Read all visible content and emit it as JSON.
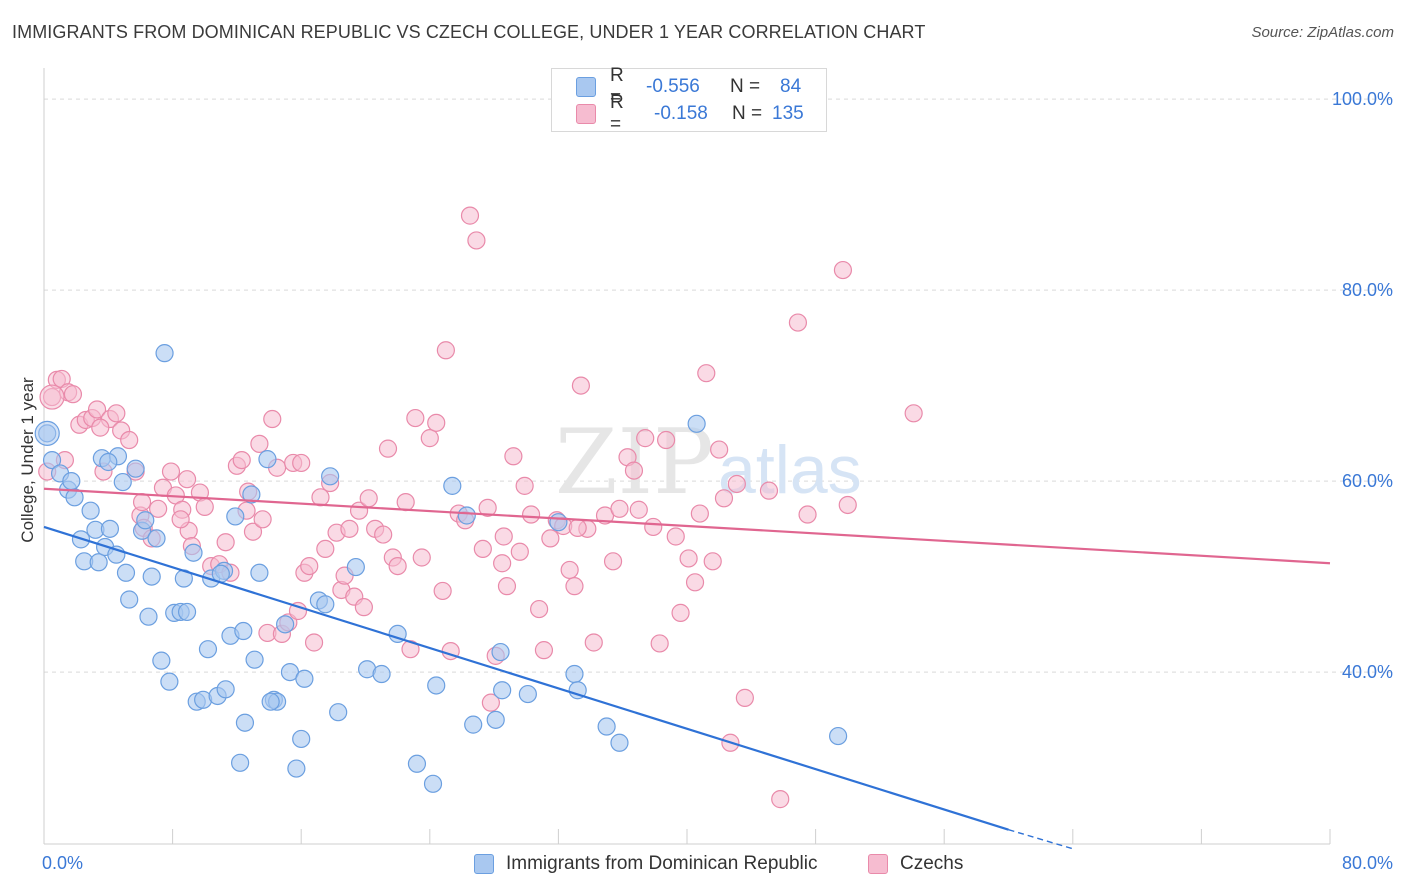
{
  "title": "IMMIGRANTS FROM DOMINICAN REPUBLIC VS CZECH COLLEGE, UNDER 1 YEAR CORRELATION CHART",
  "source": "Source: ZipAtlas.com",
  "watermark": {
    "zip": "ZIP",
    "atlas": "atlas"
  },
  "legend": {
    "series1": {
      "r_label": "R =",
      "r_value": "-0.556",
      "n_label": "N =",
      "n_value": "84"
    },
    "series2": {
      "r_label": "R =",
      "r_value": "-0.158",
      "n_label": "N =",
      "n_value": "135"
    }
  },
  "bottom_legend": {
    "series1": "Immigrants from Dominican Republic",
    "series2": "Czechs"
  },
  "colors": {
    "blue_fill": "#a9c8f0",
    "blue_stroke": "#6b9fe0",
    "blue_line": "#2f72d6",
    "pink_fill": "#f6bcd0",
    "pink_stroke": "#e98aaa",
    "pink_line": "#e06690",
    "axis_label": "#3a78d6",
    "grid": "#d9d9d9"
  },
  "chart_data": {
    "type": "scatter",
    "title": "IMMIGRANTS FROM DOMINICAN REPUBLIC VS CZECH COLLEGE, UNDER 1 YEAR CORRELATION CHART",
    "xlabel": "",
    "ylabel": "College, Under 1 year",
    "xlim": [
      0,
      80
    ],
    "ylim": [
      22,
      102
    ],
    "x_tick_labels": [
      "0.0%",
      "80.0%"
    ],
    "y_ticks": [
      40,
      60,
      80,
      100
    ],
    "y_tick_labels": [
      "40.0%",
      "60.0%",
      "80.0%",
      "100.0%"
    ],
    "series": [
      {
        "name": "Immigrants from Dominican Republic",
        "trend": {
          "x": [
            0,
            60
          ],
          "y": [
            55.2,
            23.5
          ],
          "dashed_to": [
            64,
            21.5
          ]
        },
        "points": [
          [
            0.2,
            65.0
          ],
          [
            0.5,
            62.2
          ],
          [
            1.0,
            60.8
          ],
          [
            1.5,
            59.1
          ],
          [
            1.9,
            58.3
          ],
          [
            2.3,
            53.9
          ],
          [
            2.5,
            51.6
          ],
          [
            2.9,
            56.9
          ],
          [
            3.2,
            54.9
          ],
          [
            3.4,
            51.5
          ],
          [
            3.6,
            62.4
          ],
          [
            3.8,
            53.1
          ],
          [
            4.1,
            55.0
          ],
          [
            4.5,
            52.3
          ],
          [
            4.6,
            62.6
          ],
          [
            4.9,
            59.9
          ],
          [
            5.1,
            50.4
          ],
          [
            5.3,
            47.6
          ],
          [
            5.7,
            61.3
          ],
          [
            6.1,
            54.8
          ],
          [
            6.3,
            55.9
          ],
          [
            6.5,
            45.8
          ],
          [
            6.7,
            50.0
          ],
          [
            7.0,
            54.0
          ],
          [
            7.3,
            41.2
          ],
          [
            7.5,
            73.4
          ],
          [
            7.8,
            39.0
          ],
          [
            8.1,
            46.2
          ],
          [
            8.5,
            46.3
          ],
          [
            8.7,
            49.8
          ],
          [
            8.9,
            46.3
          ],
          [
            9.3,
            52.5
          ],
          [
            9.5,
            36.9
          ],
          [
            9.9,
            37.1
          ],
          [
            10.2,
            42.4
          ],
          [
            10.4,
            49.8
          ],
          [
            10.8,
            37.5
          ],
          [
            11.2,
            50.6
          ],
          [
            11.3,
            38.2
          ],
          [
            11.6,
            43.8
          ],
          [
            11.9,
            56.3
          ],
          [
            12.2,
            30.5
          ],
          [
            12.4,
            44.3
          ],
          [
            12.5,
            34.7
          ],
          [
            12.9,
            58.6
          ],
          [
            13.1,
            41.3
          ],
          [
            13.4,
            50.4
          ],
          [
            13.9,
            62.3
          ],
          [
            14.3,
            37.1
          ],
          [
            14.5,
            36.9
          ],
          [
            15.0,
            45.0
          ],
          [
            15.3,
            40.0
          ],
          [
            15.7,
            29.9
          ],
          [
            16.0,
            33.0
          ],
          [
            16.2,
            39.3
          ],
          [
            17.1,
            47.5
          ],
          [
            17.5,
            47.1
          ],
          [
            17.8,
            60.5
          ],
          [
            18.3,
            35.8
          ],
          [
            19.4,
            51.0
          ],
          [
            20.1,
            40.3
          ],
          [
            21.0,
            39.8
          ],
          [
            22.0,
            44.0
          ],
          [
            23.2,
            30.4
          ],
          [
            24.2,
            28.3
          ],
          [
            24.4,
            38.6
          ],
          [
            25.4,
            59.5
          ],
          [
            26.3,
            56.4
          ],
          [
            26.7,
            34.5
          ],
          [
            28.1,
            35.0
          ],
          [
            28.4,
            42.1
          ],
          [
            28.5,
            38.1
          ],
          [
            30.1,
            37.7
          ],
          [
            32.0,
            55.7
          ],
          [
            33.0,
            39.8
          ],
          [
            33.2,
            38.1
          ],
          [
            35.0,
            34.3
          ],
          [
            35.8,
            32.6
          ],
          [
            40.6,
            66.0
          ],
          [
            49.4,
            33.3
          ],
          [
            14.1,
            36.9
          ],
          [
            11.0,
            50.3
          ],
          [
            4.0,
            62.0
          ],
          [
            1.7,
            60.0
          ]
        ]
      },
      {
        "name": "Czechs",
        "trend": {
          "x": [
            0,
            80
          ],
          "y": [
            59.2,
            51.4
          ]
        },
        "points": [
          [
            0.2,
            61.0
          ],
          [
            0.5,
            68.8
          ],
          [
            0.8,
            70.6
          ],
          [
            1.1,
            70.7
          ],
          [
            1.5,
            69.3
          ],
          [
            1.8,
            69.1
          ],
          [
            2.2,
            65.9
          ],
          [
            2.6,
            66.4
          ],
          [
            3.0,
            66.6
          ],
          [
            3.3,
            67.5
          ],
          [
            3.7,
            61.0
          ],
          [
            4.1,
            66.5
          ],
          [
            4.5,
            67.1
          ],
          [
            4.8,
            65.3
          ],
          [
            5.3,
            64.3
          ],
          [
            5.7,
            61.0
          ],
          [
            6.0,
            56.4
          ],
          [
            6.2,
            55.1
          ],
          [
            6.7,
            54.0
          ],
          [
            7.1,
            57.1
          ],
          [
            7.4,
            59.3
          ],
          [
            7.9,
            61.0
          ],
          [
            8.2,
            58.5
          ],
          [
            8.6,
            57.0
          ],
          [
            9.0,
            54.8
          ],
          [
            9.2,
            53.2
          ],
          [
            9.7,
            58.8
          ],
          [
            10.0,
            57.3
          ],
          [
            10.4,
            51.1
          ],
          [
            10.9,
            51.3
          ],
          [
            11.3,
            53.6
          ],
          [
            11.6,
            50.4
          ],
          [
            12.0,
            61.6
          ],
          [
            12.3,
            62.2
          ],
          [
            12.6,
            56.9
          ],
          [
            13.0,
            54.7
          ],
          [
            13.4,
            63.9
          ],
          [
            13.6,
            56.0
          ],
          [
            13.9,
            44.1
          ],
          [
            14.2,
            66.5
          ],
          [
            14.5,
            61.4
          ],
          [
            14.8,
            44.0
          ],
          [
            15.2,
            45.2
          ],
          [
            15.5,
            61.9
          ],
          [
            15.8,
            46.4
          ],
          [
            16.2,
            50.4
          ],
          [
            16.5,
            51.1
          ],
          [
            16.8,
            43.1
          ],
          [
            17.2,
            58.3
          ],
          [
            17.5,
            52.9
          ],
          [
            17.8,
            59.8
          ],
          [
            18.2,
            54.6
          ],
          [
            18.5,
            48.6
          ],
          [
            18.7,
            50.1
          ],
          [
            19.0,
            55.0
          ],
          [
            19.3,
            47.9
          ],
          [
            19.6,
            56.9
          ],
          [
            19.9,
            46.8
          ],
          [
            20.2,
            58.2
          ],
          [
            20.6,
            55.0
          ],
          [
            21.1,
            54.4
          ],
          [
            21.4,
            63.4
          ],
          [
            21.7,
            52.0
          ],
          [
            22.0,
            51.1
          ],
          [
            22.5,
            57.8
          ],
          [
            22.8,
            42.4
          ],
          [
            23.1,
            66.6
          ],
          [
            23.5,
            52.0
          ],
          [
            24.0,
            64.5
          ],
          [
            24.4,
            66.1
          ],
          [
            24.8,
            48.5
          ],
          [
            25.0,
            73.7
          ],
          [
            25.3,
            42.2
          ],
          [
            25.8,
            56.6
          ],
          [
            26.2,
            55.9
          ],
          [
            26.5,
            87.8
          ],
          [
            26.9,
            85.2
          ],
          [
            27.3,
            52.9
          ],
          [
            27.6,
            57.2
          ],
          [
            27.8,
            36.8
          ],
          [
            28.1,
            41.7
          ],
          [
            28.5,
            51.4
          ],
          [
            28.8,
            49.0
          ],
          [
            29.2,
            62.6
          ],
          [
            29.6,
            52.6
          ],
          [
            29.9,
            59.5
          ],
          [
            30.3,
            56.5
          ],
          [
            30.8,
            46.6
          ],
          [
            31.1,
            42.3
          ],
          [
            31.5,
            54.0
          ],
          [
            31.9,
            55.9
          ],
          [
            32.3,
            55.3
          ],
          [
            32.7,
            50.7
          ],
          [
            33.0,
            49.0
          ],
          [
            33.4,
            70.0
          ],
          [
            33.8,
            55.0
          ],
          [
            34.2,
            43.1
          ],
          [
            34.9,
            56.4
          ],
          [
            35.4,
            51.6
          ],
          [
            35.8,
            57.1
          ],
          [
            36.3,
            62.5
          ],
          [
            36.7,
            61.1
          ],
          [
            37.0,
            57.0
          ],
          [
            37.4,
            64.5
          ],
          [
            37.9,
            55.2
          ],
          [
            38.3,
            43.0
          ],
          [
            38.7,
            64.3
          ],
          [
            39.3,
            54.2
          ],
          [
            39.6,
            46.2
          ],
          [
            40.1,
            51.9
          ],
          [
            40.5,
            49.4
          ],
          [
            40.8,
            56.6
          ],
          [
            41.2,
            71.3
          ],
          [
            41.6,
            51.6
          ],
          [
            42.0,
            63.3
          ],
          [
            42.3,
            58.2
          ],
          [
            42.7,
            32.6
          ],
          [
            43.1,
            59.7
          ],
          [
            43.6,
            37.3
          ],
          [
            45.1,
            59.0
          ],
          [
            45.8,
            26.7
          ],
          [
            46.9,
            76.6
          ],
          [
            47.5,
            56.5
          ],
          [
            49.7,
            82.1
          ],
          [
            50.0,
            57.5
          ],
          [
            54.1,
            67.1
          ],
          [
            8.9,
            60.2
          ],
          [
            12.7,
            58.9
          ],
          [
            28.6,
            54.2
          ],
          [
            33.2,
            55.1
          ],
          [
            16.0,
            61.9
          ],
          [
            8.5,
            56.0
          ],
          [
            6.1,
            57.8
          ],
          [
            3.5,
            65.6
          ],
          [
            1.3,
            62.2
          ]
        ]
      }
    ]
  }
}
